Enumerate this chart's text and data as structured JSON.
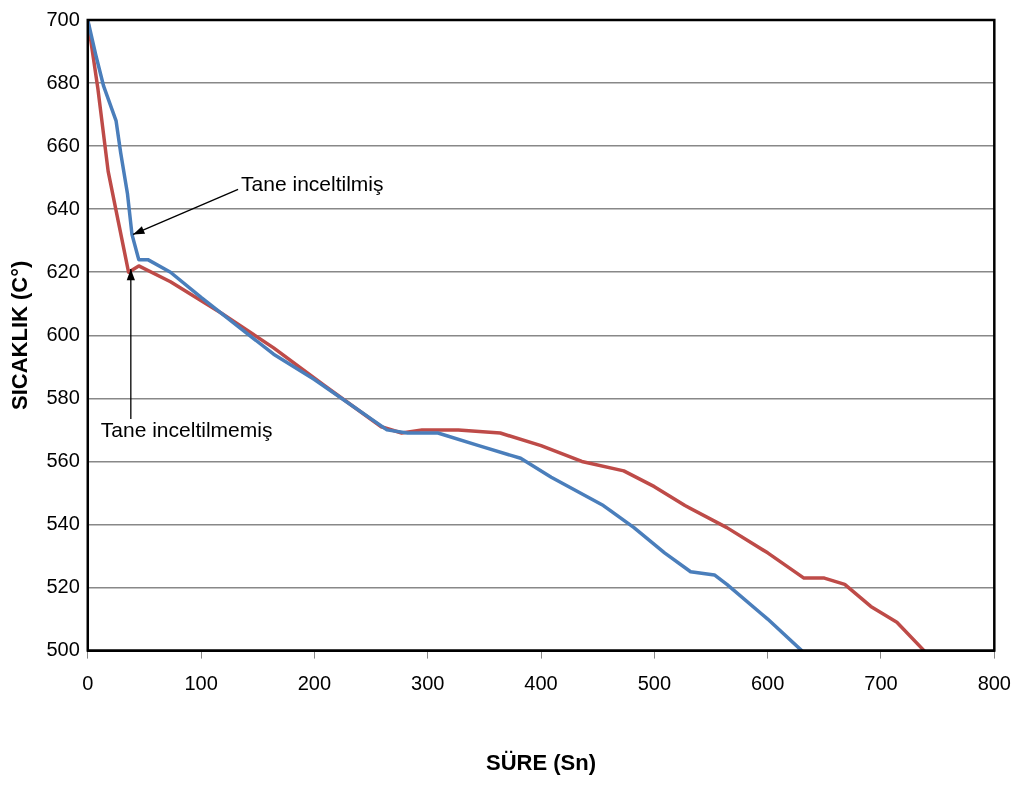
{
  "chart_data": {
    "type": "line",
    "xlabel": "SÜRE (Sn)",
    "ylabel": "SICAKLIK (C°)",
    "xlim": [
      0,
      800
    ],
    "xticks": [
      0,
      100,
      200,
      300,
      400,
      500,
      600,
      700,
      800
    ],
    "ylim": [
      500,
      700
    ],
    "yticks": [
      500,
      520,
      540,
      560,
      580,
      600,
      620,
      640,
      660,
      680,
      700
    ],
    "grid": "y",
    "legend": false,
    "marker": "none",
    "line_style": "solid",
    "series": [
      {
        "color": "#4a7ebb",
        "x": [
          0,
          7,
          14,
          25,
          29,
          35,
          39,
          45,
          53,
          73,
          100,
          164,
          200,
          264,
          282,
          309,
          345,
          382,
          409,
          455,
          482,
          509,
          532,
          553,
          564,
          600,
          630
        ],
        "values": [
          700,
          689,
          679,
          668,
          658,
          645,
          632,
          624,
          624,
          620,
          612,
          594,
          586,
          570,
          569,
          569,
          565,
          561,
          555,
          546,
          539,
          531,
          525,
          524,
          521,
          510,
          500
        ]
      },
      {
        "color": "#be4b48",
        "x": [
          0,
          9,
          18,
          27,
          36,
          45,
          73,
          118,
          164,
          209,
          259,
          277,
          295,
          327,
          364,
          400,
          436,
          473,
          500,
          527,
          564,
          600,
          632,
          650,
          668,
          691,
          714,
          738
        ],
        "values": [
          700,
          678,
          652,
          636,
          620,
          622,
          617,
          607,
          596,
          584,
          571,
          569,
          570,
          570,
          569,
          565,
          560,
          557,
          552,
          546,
          539,
          531,
          523,
          523,
          521,
          514,
          509,
          500
        ]
      }
    ],
    "annotations": [
      {
        "text": "Tane inceltilmiş",
        "x": 40,
        "y": 632
      },
      {
        "text": "Tane inceltilmemiş",
        "x": 38,
        "y": 621
      }
    ]
  }
}
